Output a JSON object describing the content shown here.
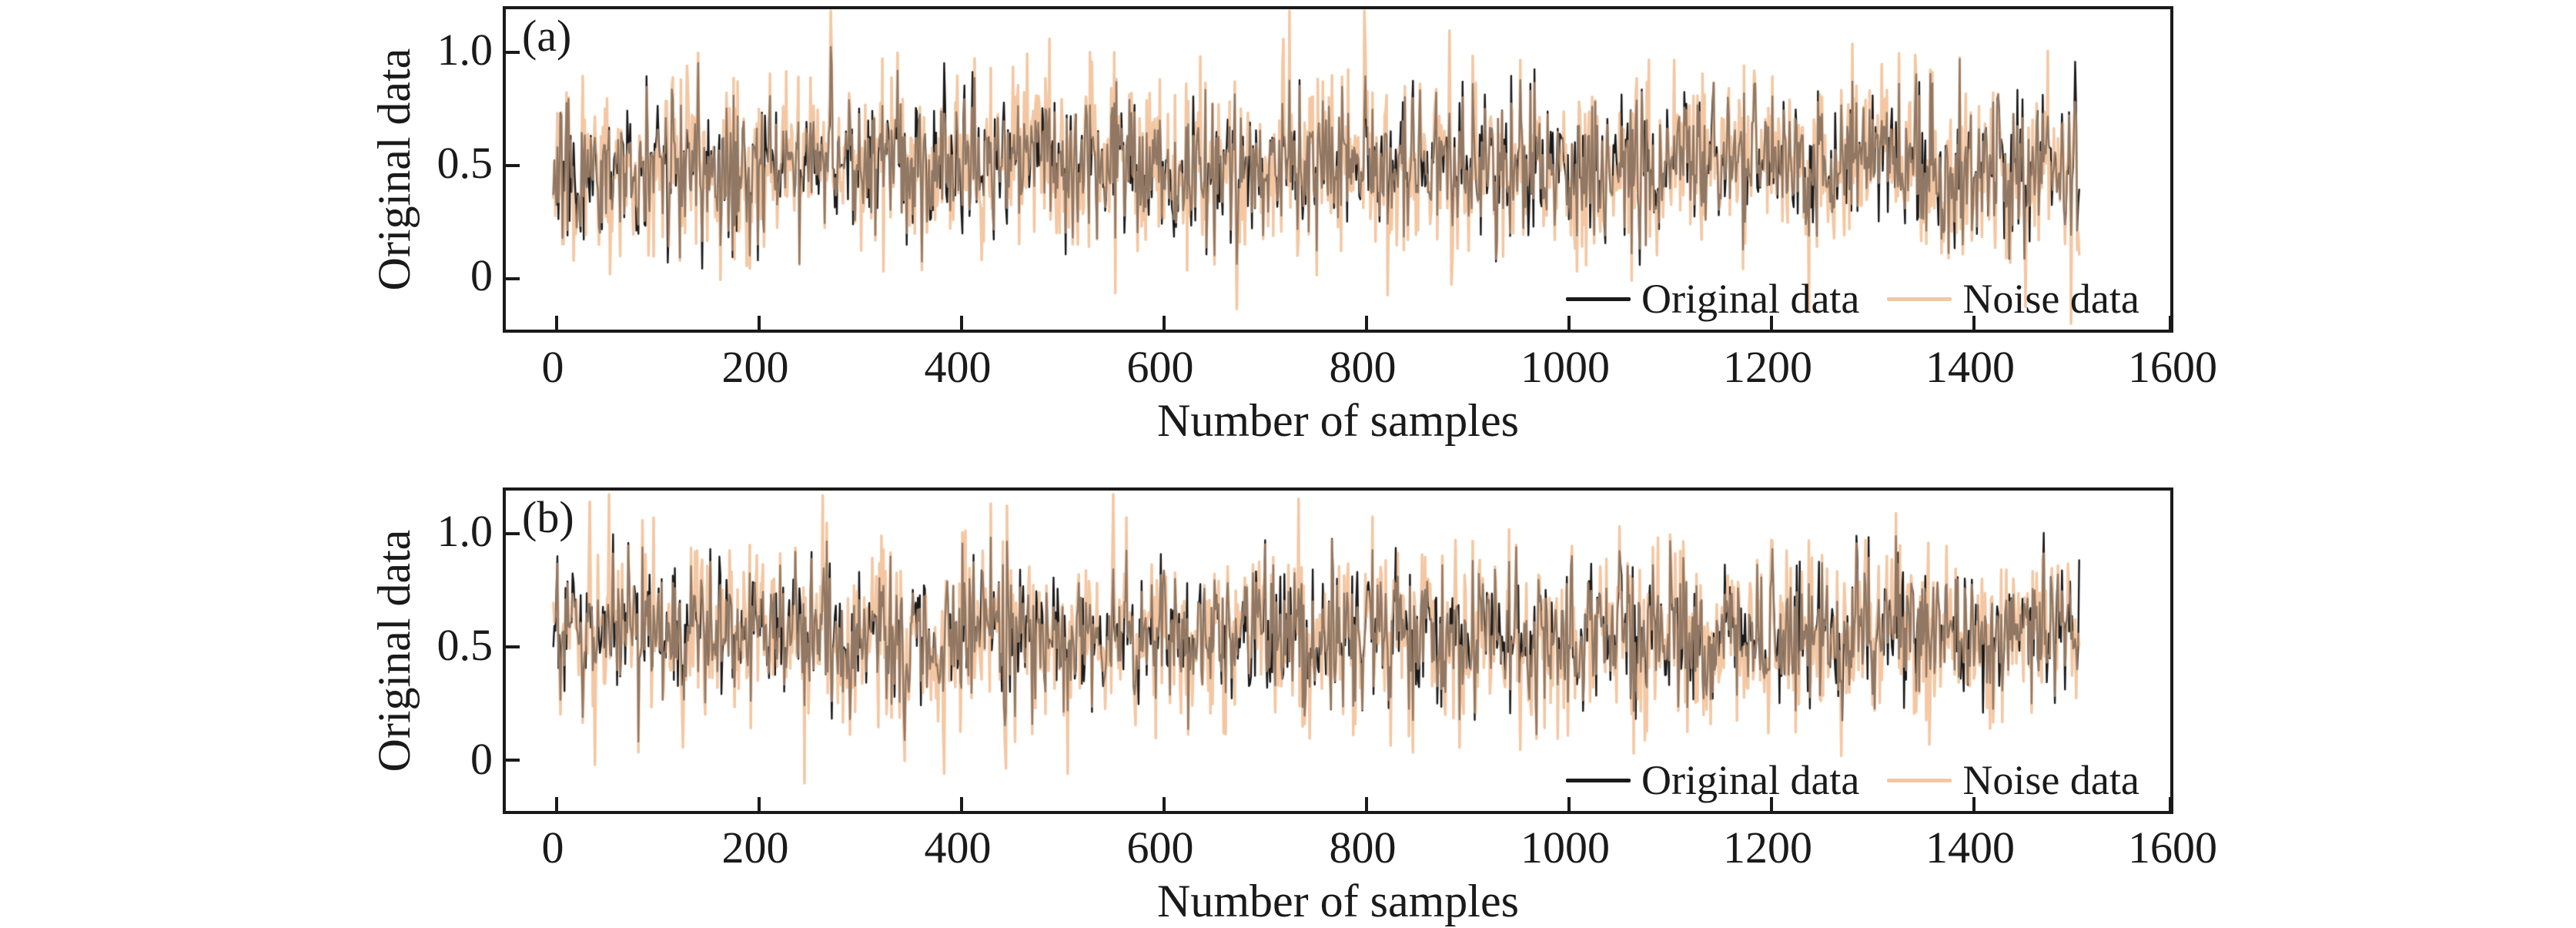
{
  "figure": {
    "background": "#ffffff",
    "text_color": "#1a1a1a"
  },
  "chart_data": [
    {
      "panel_label": "(a)",
      "type": "line",
      "title": "",
      "xlabel": "Number of samples",
      "ylabel": "Original data",
      "xlim": [
        -50,
        1600
      ],
      "ylim": [
        -0.25,
        1.19
      ],
      "x_ticks": [
        0,
        200,
        400,
        600,
        800,
        1000,
        1200,
        1400,
        1600
      ],
      "x_tick_labels": [
        "0",
        "200",
        "400",
        "600",
        "800",
        "1000",
        "1200",
        "1400",
        "1600"
      ],
      "y_ticks": [
        1.0,
        0.5,
        0
      ],
      "y_tick_labels": [
        "1.0",
        "0.5",
        "0"
      ],
      "grid": false,
      "n_samples": 1508,
      "legend": {
        "position": "lower right",
        "entries": [
          {
            "label": "Original data",
            "color": "#1a1a1a"
          },
          {
            "label": "Noise data",
            "color": "#f4c7a3"
          }
        ]
      },
      "series": [
        {
          "name": "Original data",
          "color": "#1a1a1a",
          "line_width": 2.4,
          "mean": 0.49,
          "std": 0.16,
          "clip": [
            0.03,
            1.04
          ],
          "seed": 20231
        },
        {
          "name": "Noise data",
          "color": "#f4c7a3",
          "line_width": 3.2,
          "relation": "original + added noise",
          "std_added": 0.1,
          "spike_prob": 0.06,
          "clip": [
            -0.21,
            1.17
          ],
          "seed": 77003
        }
      ]
    },
    {
      "panel_label": "(b)",
      "type": "line",
      "title": "",
      "xlabel": "Number of samples",
      "ylabel": "Original data",
      "xlim": [
        -50,
        1600
      ],
      "ylim": [
        -0.25,
        1.19
      ],
      "x_ticks": [
        0,
        200,
        400,
        600,
        800,
        1000,
        1200,
        1400,
        1600
      ],
      "x_tick_labels": [
        "0",
        "200",
        "400",
        "600",
        "800",
        "1000",
        "1200",
        "1400",
        "1600"
      ],
      "y_ticks": [
        1.0,
        0.5,
        0
      ],
      "y_tick_labels": [
        "1.0",
        "0.5",
        "0"
      ],
      "grid": false,
      "n_samples": 1508,
      "legend": {
        "position": "lower right",
        "entries": [
          {
            "label": "Original data",
            "color": "#1a1a1a"
          },
          {
            "label": "Noise data",
            "color": "#f4c7a3"
          }
        ]
      },
      "series": [
        {
          "name": "Original data",
          "color": "#1a1a1a",
          "line_width": 2.4,
          "mean": 0.54,
          "std": 0.16,
          "clip": [
            0.01,
            1.0
          ],
          "seed": 55019
        },
        {
          "name": "Noise data",
          "color": "#f4c7a3",
          "line_width": 3.2,
          "relation": "original + added noise",
          "std_added": 0.1,
          "spike_prob": 0.06,
          "clip": [
            -0.22,
            1.16
          ],
          "seed": 91207
        }
      ]
    }
  ]
}
